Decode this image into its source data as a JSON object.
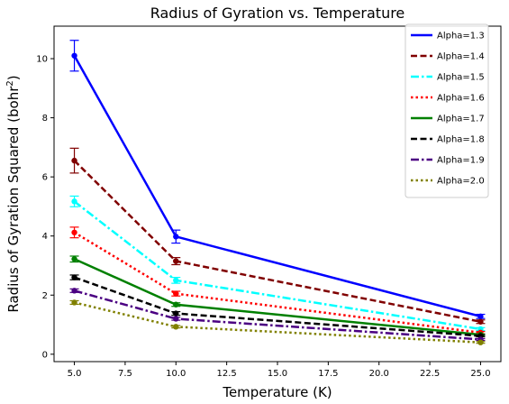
{
  "chart_data": {
    "type": "line",
    "title": "Radius of Gyration vs. Temperature",
    "xlabel": "Temperature (K)",
    "ylabel_main": "Radius of Gyration Squared (bohr",
    "ylabel_sup": "2",
    "ylabel_end": ")",
    "x": [
      5,
      10,
      25
    ],
    "xlim": [
      4,
      26
    ],
    "ylim": [
      -0.25,
      11.1
    ],
    "xticks": [
      5.0,
      7.5,
      10.0,
      12.5,
      15.0,
      17.5,
      20.0,
      22.5,
      25.0
    ],
    "xtick_labels": [
      "5.0",
      "7.5",
      "10.0",
      "12.5",
      "15.0",
      "17.5",
      "20.0",
      "22.5",
      "25.0"
    ],
    "yticks": [
      0,
      2,
      4,
      6,
      8,
      10
    ],
    "ytick_labels": [
      "0",
      "2",
      "4",
      "6",
      "8",
      "10"
    ],
    "legend_position": "top-right",
    "series": [
      {
        "name": "Alpha=1.3",
        "values": [
          10.1,
          3.98,
          1.28
        ],
        "errors": [
          0.52,
          0.22,
          0.07
        ],
        "color": "#0000ff",
        "style": "solid"
      },
      {
        "name": "Alpha=1.4",
        "values": [
          6.55,
          3.15,
          1.1
        ],
        "errors": [
          0.42,
          0.12,
          0.06
        ],
        "color": "#800000",
        "style": "dashed"
      },
      {
        "name": "Alpha=1.5",
        "values": [
          5.17,
          2.5,
          0.85
        ],
        "errors": [
          0.18,
          0.1,
          0.05
        ],
        "color": "#00ffff",
        "style": "dashdot"
      },
      {
        "name": "Alpha=1.6",
        "values": [
          4.12,
          2.05,
          0.73
        ],
        "errors": [
          0.18,
          0.08,
          0.04
        ],
        "color": "#ff0000",
        "style": "dotted"
      },
      {
        "name": "Alpha=1.7",
        "values": [
          3.22,
          1.68,
          0.66
        ],
        "errors": [
          0.1,
          0.06,
          0.03
        ],
        "color": "#008000",
        "style": "solid"
      },
      {
        "name": "Alpha=1.8",
        "values": [
          2.6,
          1.38,
          0.62
        ],
        "errors": [
          0.08,
          0.06,
          0.03
        ],
        "color": "#000000",
        "style": "dashed"
      },
      {
        "name": "Alpha=1.9",
        "values": [
          2.15,
          1.2,
          0.5
        ],
        "errors": [
          0.06,
          0.05,
          0.03
        ],
        "color": "#4b0082",
        "style": "dashdot"
      },
      {
        "name": "Alpha=2.0",
        "values": [
          1.75,
          0.93,
          0.4
        ],
        "errors": [
          0.06,
          0.04,
          0.03
        ],
        "color": "#808000",
        "style": "dotted"
      }
    ]
  }
}
